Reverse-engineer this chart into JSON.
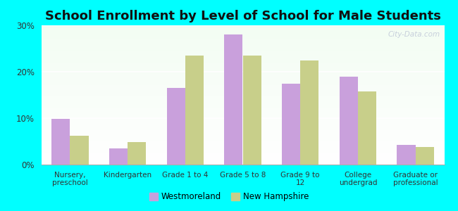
{
  "title": "School Enrollment by Level of School for Male Students",
  "categories": [
    "Nursery,\npreschool",
    "Kindergarten",
    "Grade 1 to 4",
    "Grade 5 to 8",
    "Grade 9 to\n12",
    "College\nundergrad",
    "Graduate or\nprofessional"
  ],
  "westmoreland": [
    9.8,
    3.5,
    16.5,
    28.0,
    17.5,
    19.0,
    4.2
  ],
  "new_hampshire": [
    6.2,
    4.8,
    23.5,
    23.5,
    22.5,
    15.8,
    3.8
  ],
  "color_west": "#c9a0dc",
  "color_nh": "#c8cf8a",
  "background_color": "#00ffff",
  "ylim": [
    0,
    30
  ],
  "yticks": [
    0,
    10,
    20,
    30
  ],
  "title_fontsize": 13,
  "legend_labels": [
    "Westmoreland",
    "New Hampshire"
  ],
  "bar_width": 0.32
}
